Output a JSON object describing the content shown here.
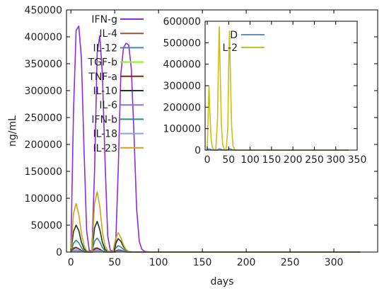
{
  "chart_data": [
    {
      "type": "line",
      "xlabel": "days",
      "ylabel": "ng/mL",
      "xlim": [
        -5,
        350
      ],
      "ylim": [
        0,
        450000
      ],
      "xticks": [
        0,
        50,
        100,
        150,
        200,
        250,
        300
      ],
      "yticks": [
        0,
        50000,
        100000,
        150000,
        200000,
        250000,
        300000,
        350000,
        400000,
        450000
      ],
      "grid": false,
      "legend_position": "top-left",
      "x": [
        0,
        3,
        6,
        9,
        12,
        15,
        18,
        21,
        24,
        27,
        30,
        33,
        36,
        39,
        42,
        45,
        48,
        51,
        54,
        57,
        60,
        63,
        66,
        69,
        72,
        75,
        78,
        81,
        84,
        87,
        90,
        95,
        100,
        110,
        120,
        150,
        200,
        250,
        300,
        330
      ],
      "series": [
        {
          "name": "IFN-g",
          "color": "#8b2be2",
          "values": [
            2000,
            260000,
            412000,
            420000,
            360000,
            190000,
            40000,
            3000,
            2000,
            150000,
            370000,
            402000,
            330000,
            170000,
            30000,
            3000,
            2000,
            8000,
            150000,
            330000,
            380000,
            388000,
            385000,
            340000,
            220000,
            80000,
            20000,
            5000,
            1500,
            500,
            200,
            50,
            0,
            0,
            0,
            0,
            0,
            0,
            0,
            0
          ]
        },
        {
          "name": "IL-4",
          "color": "#a0522d",
          "values": [
            0,
            1000,
            1200,
            1000,
            500,
            200,
            100,
            50,
            50,
            1000,
            1200,
            900,
            400,
            150,
            50,
            20,
            20,
            100,
            600,
            700,
            500,
            300,
            150,
            50,
            20,
            0,
            0,
            0,
            0,
            0,
            0,
            0,
            0,
            0,
            0,
            0,
            0,
            0,
            0,
            0
          ]
        },
        {
          "name": "IL-12",
          "color": "#4682b4",
          "values": [
            0,
            8000,
            9000,
            6000,
            2500,
            800,
            200,
            50,
            100,
            7000,
            8000,
            5500,
            2000,
            600,
            150,
            50,
            50,
            2000,
            4000,
            3500,
            2000,
            800,
            300,
            100,
            0,
            0,
            0,
            0,
            0,
            0,
            0,
            0,
            0,
            0,
            0,
            0,
            0,
            0,
            0,
            0
          ]
        },
        {
          "name": "TGF-b",
          "color": "#7cfc00",
          "values": [
            0,
            1500,
            1800,
            1400,
            900,
            500,
            300,
            200,
            200,
            1400,
            1700,
            1300,
            800,
            400,
            250,
            150,
            150,
            600,
            1100,
            1000,
            700,
            400,
            250,
            150,
            80,
            50,
            0,
            0,
            0,
            0,
            0,
            0,
            0,
            0,
            0,
            0,
            0,
            0,
            0,
            0
          ]
        },
        {
          "name": "TNF-a",
          "color": "#8b2500",
          "values": [
            0,
            6000,
            8000,
            6000,
            3000,
            1200,
            400,
            100,
            100,
            5500,
            7000,
            5000,
            2200,
            900,
            300,
            100,
            100,
            2000,
            3500,
            3000,
            1800,
            700,
            250,
            80,
            0,
            0,
            0,
            0,
            0,
            0,
            0,
            0,
            0,
            0,
            0,
            0,
            0,
            0,
            0,
            0
          ]
        },
        {
          "name": "IL-10",
          "color": "#1a3c1a",
          "values": [
            0,
            38000,
            50000,
            40000,
            18000,
            6000,
            1500,
            400,
            500,
            45000,
            57000,
            42000,
            18000,
            5000,
            1200,
            300,
            300,
            15000,
            25000,
            20000,
            10000,
            3500,
            1000,
            300,
            100,
            0,
            0,
            0,
            0,
            0,
            0,
            0,
            0,
            0,
            0,
            0,
            0,
            0,
            0,
            0
          ]
        },
        {
          "name": "IL-6",
          "color": "#9370db",
          "values": [
            0,
            3000,
            4000,
            3000,
            1500,
            500,
            150,
            50,
            50,
            3000,
            3800,
            2800,
            1300,
            450,
            120,
            40,
            40,
            1200,
            2200,
            1800,
            1000,
            350,
            100,
            30,
            0,
            0,
            0,
            0,
            0,
            0,
            0,
            0,
            0,
            0,
            0,
            0,
            0,
            0,
            0,
            0
          ]
        },
        {
          "name": "IFN-b",
          "color": "#2e8b8b",
          "values": [
            0,
            16000,
            22000,
            17000,
            8000,
            2500,
            700,
            200,
            200,
            20000,
            26000,
            19000,
            8500,
            2500,
            700,
            200,
            200,
            7000,
            12000,
            9500,
            5000,
            1800,
            500,
            150,
            50,
            0,
            0,
            0,
            0,
            0,
            0,
            0,
            0,
            0,
            0,
            0,
            0,
            0,
            0,
            0
          ]
        },
        {
          "name": "IL-18",
          "color": "#87a5dc",
          "values": [
            0,
            2000,
            2500,
            1800,
            900,
            300,
            100,
            30,
            30,
            1800,
            2300,
            1700,
            800,
            250,
            80,
            30,
            30,
            700,
            1300,
            1100,
            600,
            200,
            60,
            20,
            0,
            0,
            0,
            0,
            0,
            0,
            0,
            0,
            0,
            0,
            0,
            0,
            0,
            0,
            0,
            0
          ]
        },
        {
          "name": "IL-23",
          "color": "#d4a017",
          "values": [
            0,
            72000,
            90000,
            70000,
            35000,
            12000,
            3000,
            800,
            1000,
            90000,
            112000,
            85000,
            38000,
            11000,
            2500,
            600,
            600,
            24000,
            36000,
            27000,
            13000,
            4500,
            1200,
            300,
            100,
            0,
            0,
            0,
            0,
            0,
            0,
            0,
            0,
            0,
            0,
            0,
            0,
            0,
            0,
            0
          ]
        }
      ]
    },
    {
      "type": "line",
      "inset": true,
      "xlim": [
        -5,
        350
      ],
      "ylim": [
        0,
        600000
      ],
      "xticks": [
        0,
        50,
        100,
        150,
        200,
        250,
        300,
        350
      ],
      "yticks": [
        0,
        100000,
        200000,
        300000,
        400000,
        500000,
        600000
      ],
      "grid": false,
      "legend_position": "top-left",
      "x": [
        0,
        2,
        4,
        6,
        9,
        12,
        16,
        20,
        24,
        26,
        28,
        30,
        33,
        36,
        40,
        44,
        48,
        50,
        52,
        54,
        57,
        60,
        64,
        70,
        80,
        100,
        150,
        200,
        250,
        300,
        330
      ],
      "series": [
        {
          "name": "D",
          "color": "#5b8ed8",
          "values": [
            0,
            4000,
            6000,
            5000,
            2500,
            800,
            200,
            50,
            800,
            4000,
            6000,
            5500,
            3000,
            900,
            200,
            50,
            1000,
            4000,
            6000,
            5500,
            3000,
            1000,
            250,
            50,
            0,
            0,
            0,
            0,
            0,
            0,
            0
          ]
        },
        {
          "name": "L-2",
          "color": "#c8bf1a",
          "values": [
            0,
            150000,
            300000,
            180000,
            50000,
            12000,
            2000,
            300,
            150000,
            400000,
            575000,
            380000,
            120000,
            25000,
            3000,
            400,
            100000,
            380000,
            555000,
            360000,
            110000,
            20000,
            2500,
            300,
            0,
            0,
            0,
            0,
            0,
            0,
            0
          ]
        }
      ]
    }
  ]
}
